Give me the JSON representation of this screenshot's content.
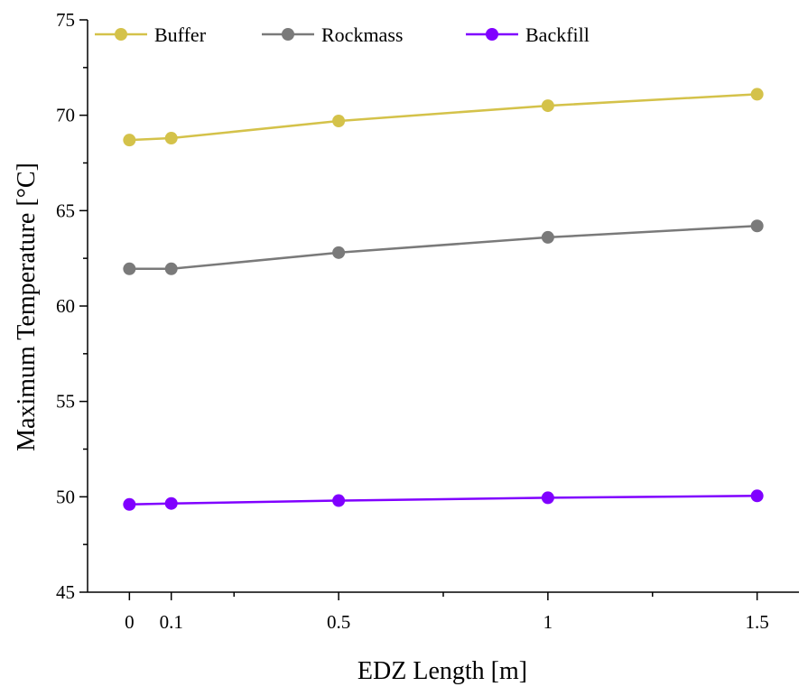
{
  "chart_data": {
    "type": "line",
    "title": "",
    "xlabel": "EDZ Length [m]",
    "ylabel": "Maximum Temperature [°C]",
    "xlim": [
      -0.1,
      1.6
    ],
    "ylim": [
      45,
      75
    ],
    "x_ticks": [
      0,
      0.1,
      0.5,
      1,
      1.5
    ],
    "x_tick_labels": [
      "0",
      "0.1",
      "0.5",
      "1",
      "1.5"
    ],
    "x_minor_ticks": [
      0.25,
      0.75,
      1.25
    ],
    "y_ticks": [
      45,
      50,
      55,
      60,
      65,
      70,
      75
    ],
    "y_tick_labels": [
      "45",
      "50",
      "55",
      "60",
      "65",
      "70",
      "75"
    ],
    "y_minor_ticks": [
      47.5,
      52.5,
      57.5,
      62.5,
      67.5,
      72.5
    ],
    "grid": false,
    "legend_position": "top",
    "x": [
      0,
      0.1,
      0.5,
      1,
      1.5
    ],
    "series": [
      {
        "name": "Buffer",
        "color": "#d4c24a",
        "values": [
          68.7,
          68.8,
          69.7,
          70.5,
          71.1
        ]
      },
      {
        "name": "Rockmass",
        "color": "#7a7a7a",
        "values": [
          61.95,
          61.95,
          62.8,
          63.6,
          64.2
        ]
      },
      {
        "name": "Backfill",
        "color": "#8000ff",
        "values": [
          49.6,
          49.65,
          49.8,
          49.95,
          50.05
        ]
      }
    ]
  }
}
